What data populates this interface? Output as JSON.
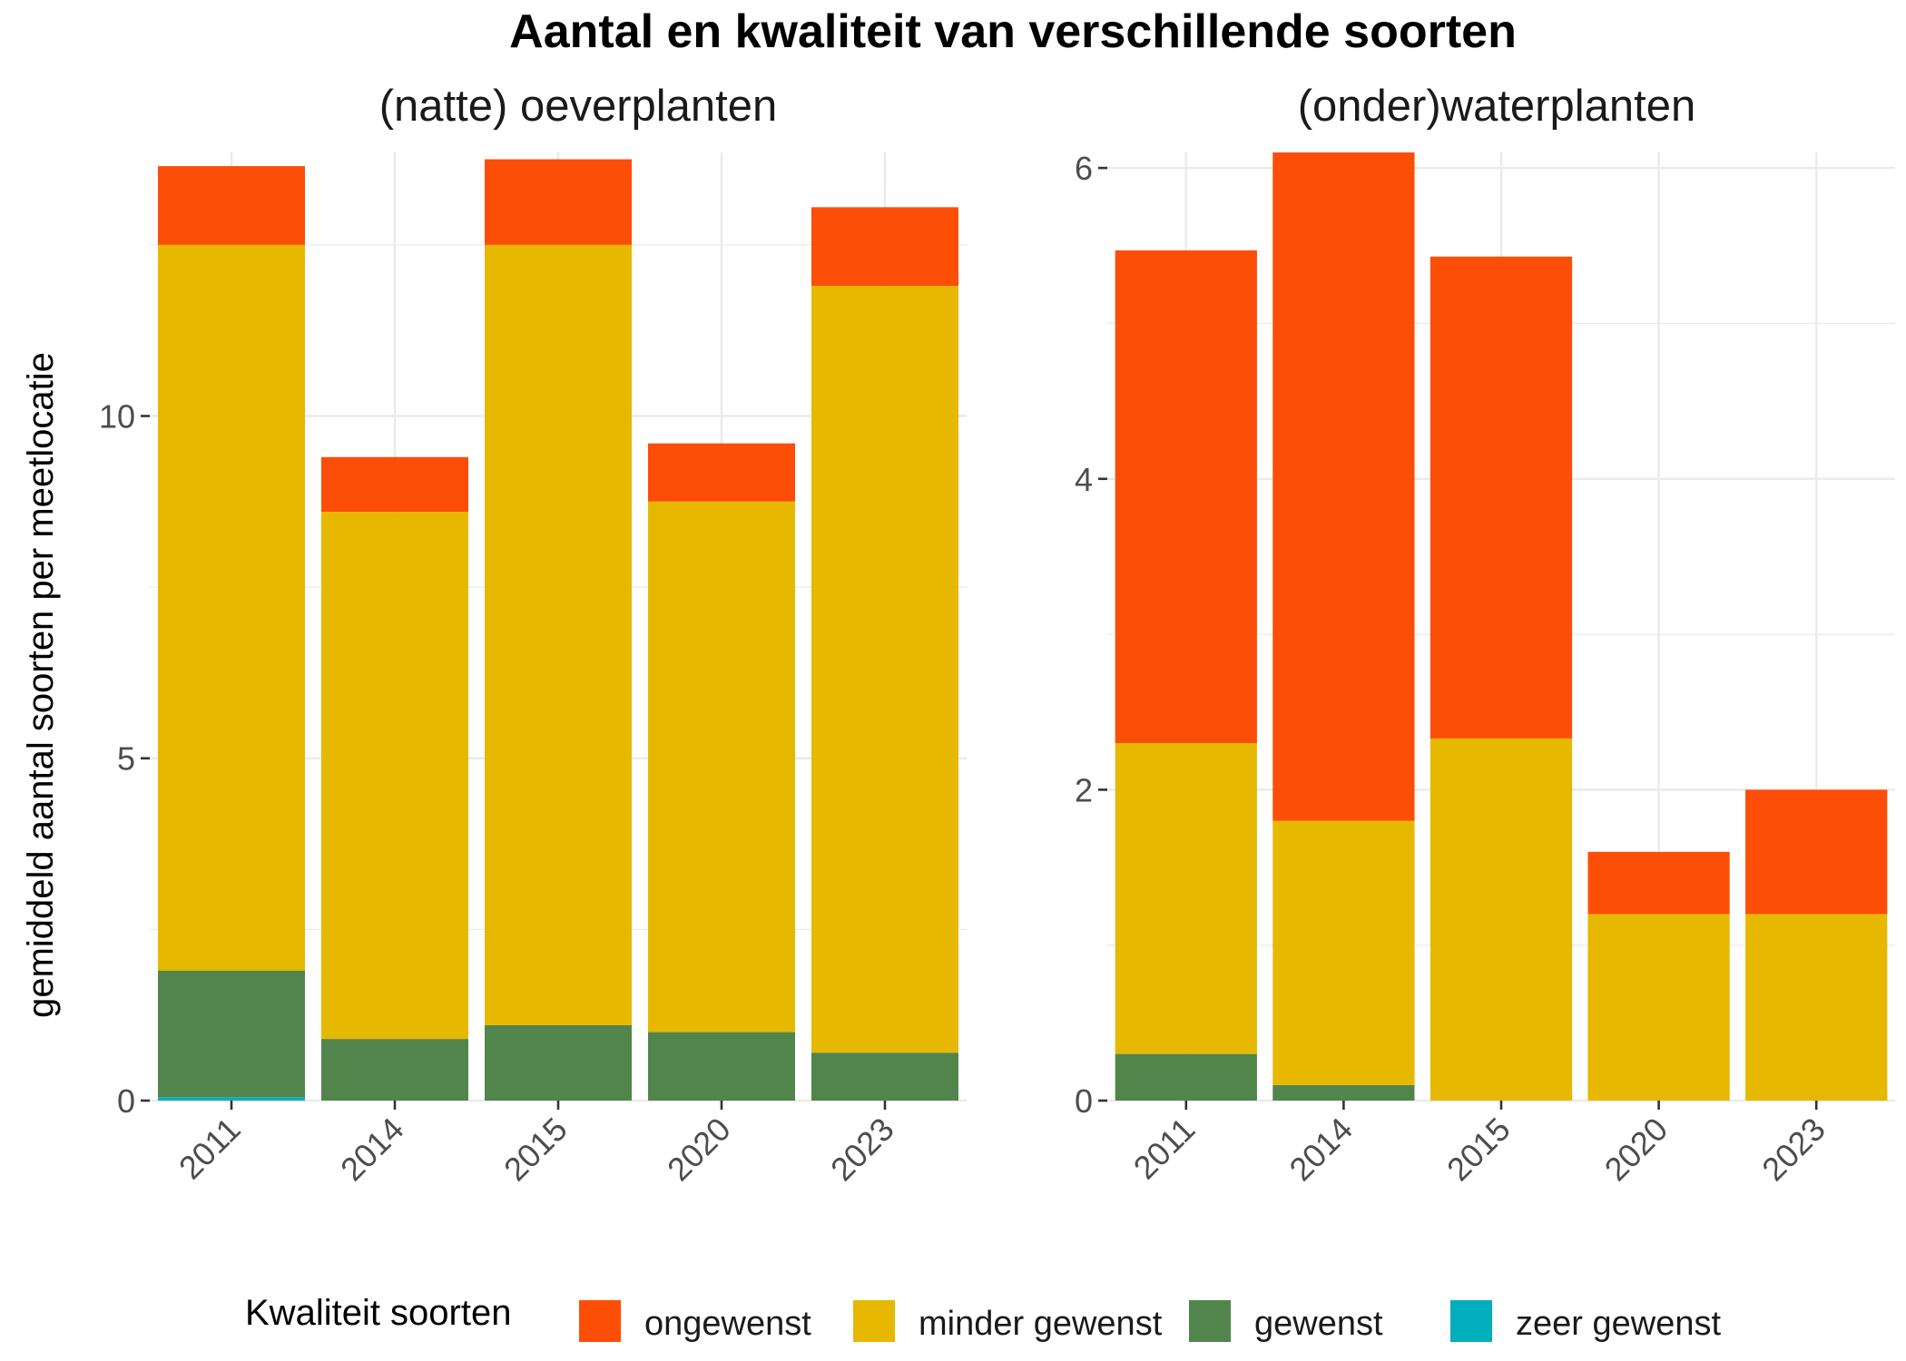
{
  "chart_data": {
    "type": "bar",
    "stacked": true,
    "title": "Aantal en kwaliteit van verschillende soorten",
    "ylabel": "gemiddeld aantal soorten per meetlocatie",
    "categories": [
      "2011",
      "2014",
      "2015",
      "2020",
      "2023"
    ],
    "grid": true,
    "legend": {
      "position": "bottom",
      "title": "Kwaliteit soorten",
      "entries": [
        {
          "name": "ongewenst",
          "color": "#FC4E07"
        },
        {
          "name": "minder gewenst",
          "color": "#E7B800"
        },
        {
          "name": "gewenst",
          "color": "#52854C"
        },
        {
          "name": "zeer gewenst",
          "color": "#00AFBB"
        }
      ]
    },
    "panels": [
      {
        "title": "(natte) oeverplanten",
        "ylim": [
          0,
          13.85
        ],
        "yticks": [
          0,
          5,
          10
        ],
        "series": [
          {
            "name": "zeer gewenst",
            "color": "#00AFBB",
            "values": [
              0.05,
              0,
              0,
              0,
              0
            ]
          },
          {
            "name": "gewenst",
            "color": "#52854C",
            "values": [
              1.85,
              0.9,
              1.1,
              1.0,
              0.7
            ]
          },
          {
            "name": "minder gewenst",
            "color": "#E7B800",
            "values": [
              10.6,
              7.7,
              11.4,
              7.75,
              11.2
            ]
          },
          {
            "name": "ongewenst",
            "color": "#FC4E07",
            "values": [
              1.15,
              0.8,
              1.25,
              0.85,
              1.15
            ]
          }
        ]
      },
      {
        "title": "(onder)waterplanten",
        "ylim": [
          0,
          6.1
        ],
        "yticks": [
          0,
          2,
          4,
          6
        ],
        "series": [
          {
            "name": "zeer gewenst",
            "color": "#00AFBB",
            "values": [
              0,
              0,
              0,
              0,
              0
            ]
          },
          {
            "name": "gewenst",
            "color": "#52854C",
            "values": [
              0.3,
              0.1,
              0,
              0,
              0
            ]
          },
          {
            "name": "minder gewenst",
            "color": "#E7B800",
            "values": [
              2.0,
              1.7,
              2.33,
              1.2,
              1.2
            ]
          },
          {
            "name": "ongewenst",
            "color": "#FC4E07",
            "values": [
              3.17,
              4.3,
              3.1,
              0.4,
              0.8
            ]
          }
        ]
      }
    ]
  }
}
